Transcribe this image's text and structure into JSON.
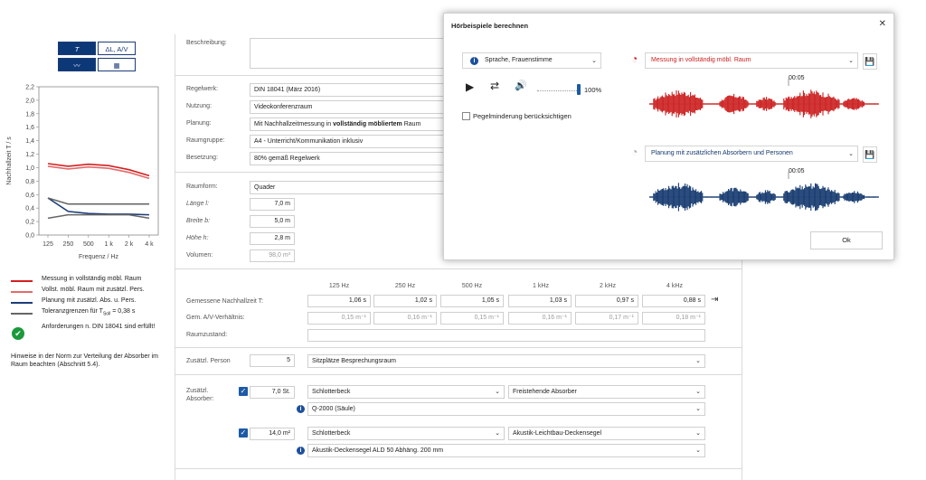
{
  "chart_tabs": {
    "tab_t": "T",
    "tab_dl": "ΔL, A/V",
    "tab_chart_icon": "line-chart-icon",
    "tab_table_icon": "table-icon"
  },
  "chart_data": {
    "type": "line",
    "categories": [
      "125",
      "250",
      "500",
      "1 k",
      "2 k",
      "4 k"
    ],
    "xlabel": "Frequenz / Hz",
    "ylabel": "Nachhallzeit T / s",
    "ylim": [
      0,
      2.2
    ],
    "yticks": [
      "0,0",
      "0,2",
      "0,4",
      "0,6",
      "0,8",
      "1,0",
      "1,2",
      "1,4",
      "1,6",
      "1,8",
      "2,0",
      "2,2"
    ],
    "series": [
      {
        "name": "Messung in vollständig möbl. Raum",
        "color": "#d42020",
        "values": [
          1.06,
          1.02,
          1.05,
          1.03,
          0.97,
          0.88
        ]
      },
      {
        "name": "Vollst. möbl. Raum mit zusätzl. Pers.",
        "color": "#e46a6a",
        "values": [
          1.02,
          0.98,
          1.01,
          0.99,
          0.93,
          0.84
        ]
      },
      {
        "name": "Planung mit zusätzl. Abs. u. Pers.",
        "color": "#1d3c78",
        "values": [
          0.55,
          0.35,
          0.32,
          0.31,
          0.31,
          0.3
        ]
      },
      {
        "name": "Toleranzgrenze oben",
        "color": "#666666",
        "values": [
          0.55,
          0.46,
          0.46,
          0.46,
          0.46,
          0.46
        ]
      },
      {
        "name": "Toleranzgrenze unten",
        "color": "#666666",
        "values": [
          0.25,
          0.3,
          0.3,
          0.3,
          0.3,
          0.25
        ]
      }
    ]
  },
  "legend": {
    "item1": "Messung in vollständig möbl. Raum",
    "item2": "Vollst. möbl. Raum mit zusätzl. Pers.",
    "item3": "Planung mit zusätzl. Abs. u. Pers.",
    "item4": "Toleranzgrenzen für T",
    "item4_sub": "Soll",
    "item4_val": " = 0,38 s",
    "status": "Anforderungen n. DIN 18041 sind erfüllt!",
    "hint": "Hinweise in der Norm zur Verteilung der Absorber im Raum beachten (Abschnitt 5.4)."
  },
  "form": {
    "beschreibung_label": "Beschreibung:",
    "regelwerk_label": "Regelwerk:",
    "regelwerk_value": "DIN 18041 (März 2016)",
    "nutzung_label": "Nutzung:",
    "nutzung_value": "Videokonferenzraum",
    "planung_label": "Planung:",
    "planung_value_pre": "Mit Nachhallzeitmessung in ",
    "planung_value_bold": "vollständig möbliertem",
    "planung_value_post": " Raum",
    "raumgruppe_label": "Raumgruppe:",
    "raumgruppe_value": "A4 - Unterricht/Kommunikation inklusiv",
    "besetzung_label": "Besetzung:",
    "besetzung_value": "80% gemäß Regelwerk",
    "raumform_label": "Raumform:",
    "raumform_value": "Quader",
    "laenge_label": "Länge l:",
    "laenge_value": "7,0 m",
    "breite_label": "Breite b:",
    "breite_value": "5,0 m",
    "hoehe_label": "Höhe h:",
    "hoehe_value": "2,8 m",
    "volumen_label": "Volumen:",
    "volumen_value": "98,0 m³"
  },
  "freq_table": {
    "headers": [
      "125 Hz",
      "250 Hz",
      "500 Hz",
      "1 kHz",
      "2 kHz",
      "4 kHz"
    ],
    "row1_label": "Gemessene Nachhallzeit T:",
    "row1": [
      "1,06 s",
      "1,02 s",
      "1,05 s",
      "1,03 s",
      "0,97 s",
      "0,88 s"
    ],
    "row2_label": "Gem. A/V-Verhältnis:",
    "row2": [
      "0,15 m⁻¹",
      "0,16 m⁻¹",
      "0,15 m⁻¹",
      "0,16 m⁻¹",
      "0,17 m⁻¹",
      "0,18 m⁻¹"
    ],
    "row3_label": "Raumzustand:"
  },
  "persons": {
    "label": "Zusätzl. Person",
    "count": "5",
    "seating": "Sitzplätze Besprechungsraum"
  },
  "absorbers": {
    "label": "Zusätzl. Absorber:",
    "a1_qty": "7,0 St.",
    "a1_maker": "Schlotterbeck",
    "a1_type": "Freistehende Absorber",
    "a1_product": "Q-2000 (Säule)",
    "a2_qty": "14,0 m²",
    "a2_maker": "Schlotterbeck",
    "a2_type": "Akustik-Leichtbau-Deckensegel",
    "a2_product": "Akustik-Deckensegel ALD 50 Abhäng. 200 mm"
  },
  "dialog": {
    "title": "Hörbeispiele berechnen",
    "source": "Sprache, Frauenstimme",
    "volume": "100%",
    "checkbox_label": "Pegelminderung berücksichtigen",
    "track1": "Messung in vollständig möbl. Raum",
    "track1_color": "#cc1f1f",
    "track2": "Planung mit zusätzlichen Absorbern und Personen",
    "track2_color": "#13386e",
    "time_mark": "00:05",
    "ok": "Ok"
  }
}
